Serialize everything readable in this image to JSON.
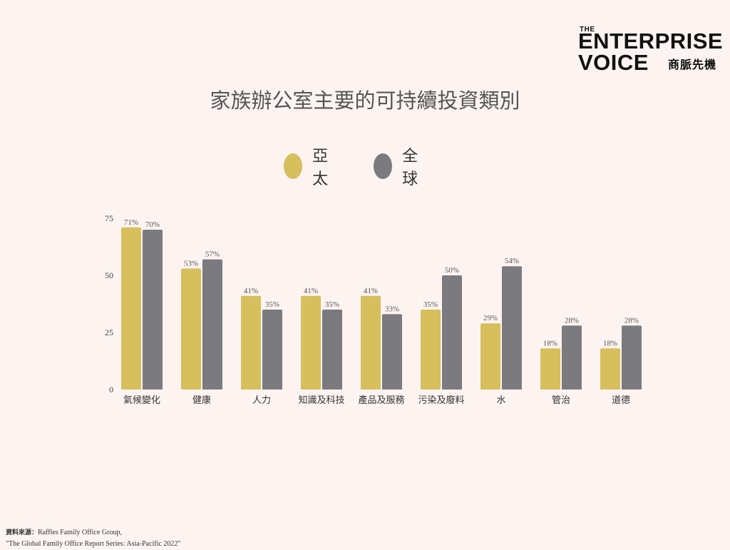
{
  "brand": {
    "the": "THE",
    "line1": "ENTERPRISE",
    "line2": "VOICE",
    "chinese": "商脈先機"
  },
  "chart_data": {
    "type": "bar",
    "title": "家族辦公室主要的可持續投資類別",
    "categories": [
      "氣候變化",
      "健康",
      "人力",
      "知識及科技",
      "產品及服務",
      "污染及廢料",
      "水",
      "管治",
      "道德"
    ],
    "series": [
      {
        "name": "亞太",
        "color": "#d6bf5c",
        "values": [
          71,
          53,
          41,
          41,
          41,
          35,
          29,
          18,
          18
        ]
      },
      {
        "name": "全球",
        "color": "#7b7a7e",
        "values": [
          70,
          57,
          35,
          35,
          33,
          50,
          54,
          28,
          28
        ]
      }
    ],
    "yticks": [
      0,
      25,
      50,
      75
    ],
    "ylim": [
      0,
      75
    ],
    "value_suffix": "%",
    "legend_position": "top-center",
    "grid": false
  },
  "source": {
    "label": "資料來源：",
    "line1": "Raffles Family Office Group,",
    "line2": "\"The Global Family Office Report Series: Asia-Pacific 2022\""
  }
}
